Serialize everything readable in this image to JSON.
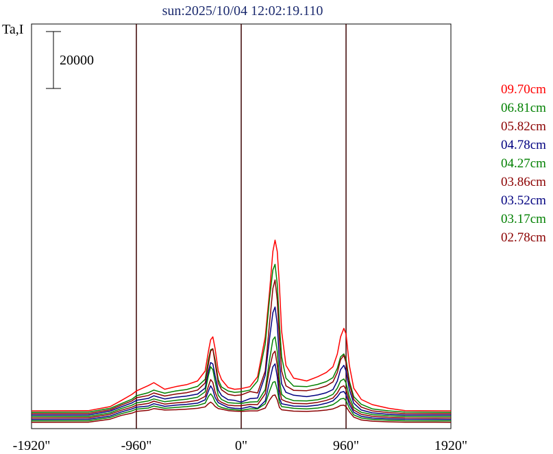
{
  "chart_data": {
    "type": "line",
    "title": "sun:2025/10/04 12:02:19.110",
    "ylabel": "Ta,I",
    "xlabel": "",
    "x_ticks": [
      "-1920\"",
      "-960\"",
      "0\"",
      "960\"",
      "1920\""
    ],
    "x_tick_values": [
      -1920,
      -960,
      0,
      960,
      1920
    ],
    "xlim": [
      -1920,
      1920
    ],
    "scale_bar_label": "20000",
    "scale_bar_value": 20000,
    "vertical_markers": [
      -960,
      0,
      960
    ],
    "grid": false,
    "legend_position": "right",
    "profile_x": [
      -1920,
      -1400,
      -1200,
      -1100,
      -1000,
      -960,
      -850,
      -800,
      -700,
      -600,
      -500,
      -400,
      -330,
      -300,
      -280,
      -260,
      -240,
      -210,
      -180,
      -120,
      -60,
      0,
      80,
      150,
      220,
      260,
      290,
      310,
      330,
      350,
      370,
      410,
      480,
      600,
      700,
      780,
      840,
      880,
      910,
      940,
      960,
      990,
      1030,
      1100,
      1200,
      1350,
      1500,
      1920
    ],
    "series": [
      {
        "name": "09.70cm",
        "color": "#ff0000",
        "offset": 4550,
        "values": [
          0,
          80,
          1500,
          3600,
          5800,
          7000,
          8900,
          9900,
          7600,
          8500,
          9200,
          10500,
          14000,
          21000,
          25000,
          26000,
          22000,
          14000,
          11000,
          8200,
          7600,
          7800,
          8500,
          12000,
          26000,
          42000,
          56000,
          60000,
          56000,
          44000,
          28000,
          16000,
          11500,
          10500,
          12000,
          13500,
          15500,
          20000,
          26000,
          29000,
          27000,
          16000,
          8000,
          4000,
          2200,
          900,
          80,
          0
        ]
      },
      {
        "name": "06.81cm",
        "color": "#008000",
        "offset": 4050,
        "values": [
          0,
          80,
          1400,
          3000,
          4600,
          5800,
          6900,
          7800,
          6700,
          7500,
          8000,
          9100,
          11600,
          18500,
          22000,
          22300,
          18500,
          11500,
          8900,
          7500,
          7000,
          7200,
          7800,
          11000,
          24000,
          40000,
          50000,
          52000,
          45000,
          31000,
          19500,
          12000,
          9200,
          9000,
          9800,
          10800,
          12200,
          15500,
          19500,
          20500,
          18500,
          11000,
          5500,
          2800,
          1200,
          500,
          60,
          0
        ]
      },
      {
        "name": "05.82cm",
        "color": "#8b0000",
        "offset": 3550,
        "values": [
          0,
          70,
          1400,
          3000,
          4500,
          5600,
          6400,
          7300,
          6200,
          6900,
          7400,
          8300,
          10800,
          17500,
          22000,
          22800,
          18000,
          10800,
          8400,
          6800,
          6400,
          6600,
          7800,
          7300,
          15000,
          32000,
          44000,
          47000,
          40000,
          26000,
          15000,
          9800,
          8200,
          8100,
          8800,
          9800,
          11200,
          14500,
          19000,
          20500,
          18000,
          10500,
          5000,
          2300,
          1000,
          400,
          50,
          0
        ]
      },
      {
        "name": "04.78cm",
        "color": "#000080",
        "offset": 3050,
        "values": [
          0,
          60,
          1400,
          2900,
          4300,
          5200,
          5900,
          6800,
          5700,
          6300,
          6700,
          7400,
          9500,
          15500,
          18500,
          18000,
          14000,
          8800,
          6900,
          5400,
          5200,
          4600,
          5800,
          6000,
          14000,
          27000,
          36000,
          38000,
          32000,
          18500,
          11000,
          8000,
          7000,
          6500,
          7100,
          7900,
          9000,
          12000,
          16000,
          17500,
          15500,
          9000,
          4200,
          1800,
          800,
          300,
          40,
          0
        ]
      },
      {
        "name": "04.27cm",
        "color": "#008000",
        "offset": 2550,
        "values": [
          0,
          60,
          1300,
          2800,
          4000,
          4800,
          5500,
          6200,
          5200,
          5700,
          6100,
          6800,
          8700,
          14500,
          17500,
          16500,
          12500,
          7500,
          6000,
          4900,
          4700,
          4600,
          5100,
          5200,
          9500,
          20000,
          27000,
          28000,
          23000,
          13000,
          7800,
          6500,
          5600,
          5500,
          5900,
          6700,
          7800,
          10000,
          12500,
          13200,
          11800,
          7000,
          3200,
          1500,
          700,
          300,
          40,
          0
        ]
      },
      {
        "name": "03.86cm",
        "color": "#8b0000",
        "offset": 2050,
        "values": [
          0,
          50,
          1300,
          2700,
          3800,
          4500,
          5100,
          5900,
          4900,
          5300,
          5600,
          6200,
          7600,
          11200,
          13500,
          12500,
          9200,
          6300,
          5500,
          4500,
          4300,
          4300,
          4800,
          4700,
          8500,
          17500,
          22500,
          23500,
          18500,
          10000,
          6500,
          5800,
          5100,
          5000,
          5500,
          6200,
          7000,
          8800,
          10800,
          11300,
          10000,
          6000,
          2800,
          1300,
          600,
          250,
          30,
          0
        ]
      },
      {
        "name": "03.52cm",
        "color": "#000080",
        "offset": 1550,
        "values": [
          0,
          50,
          1200,
          2600,
          3700,
          4300,
          4700,
          5500,
          4600,
          5000,
          5300,
          5700,
          6900,
          10000,
          11800,
          10500,
          7800,
          5900,
          5300,
          4200,
          3900,
          3800,
          4500,
          3900,
          6500,
          13500,
          18500,
          19500,
          15000,
          7500,
          5500,
          5200,
          4700,
          4600,
          5000,
          5700,
          6500,
          8000,
          9500,
          9800,
          8700,
          5300,
          2500,
          1100,
          500,
          200,
          30,
          0
        ]
      },
      {
        "name": "03.17cm",
        "color": "#008000",
        "offset": 1050,
        "values": [
          0,
          40,
          1200,
          2500,
          3500,
          4100,
          4500,
          5200,
          4400,
          4700,
          5000,
          5400,
          6200,
          8600,
          9500,
          8500,
          6700,
          5200,
          4700,
          4100,
          3900,
          3700,
          4200,
          4200,
          6000,
          10500,
          13500,
          13800,
          11000,
          6500,
          5000,
          4800,
          4400,
          4200,
          4500,
          5000,
          5700,
          6700,
          7700,
          7900,
          7100,
          4500,
          2100,
          1000,
          500,
          200,
          30,
          0
        ]
      },
      {
        "name": "02.78cm",
        "color": "#8b0000",
        "offset": 550,
        "values": [
          0,
          40,
          1100,
          2400,
          3200,
          3800,
          4200,
          4800,
          4300,
          4400,
          4600,
          4900,
          5400,
          6500,
          7100,
          6500,
          5600,
          4800,
          4600,
          4100,
          3900,
          3800,
          4000,
          4000,
          5000,
          7800,
          9400,
          9600,
          7900,
          5200,
          4400,
          4200,
          3900,
          3800,
          4000,
          4300,
          4700,
          5300,
          5900,
          6000,
          5500,
          3700,
          1800,
          800,
          400,
          150,
          20,
          0
        ]
      }
    ]
  }
}
